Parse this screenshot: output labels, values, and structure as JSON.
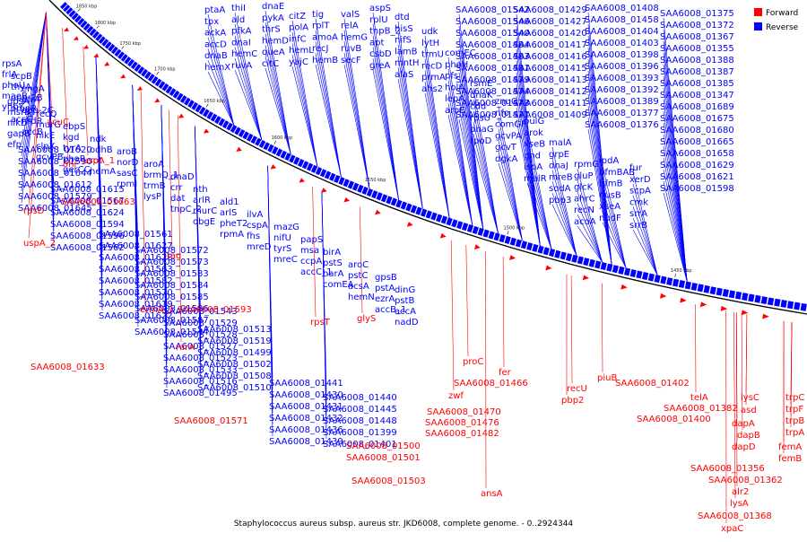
{
  "caption": "Staphylococcus aureus subsp. aureus str. JKD6008, complete genome. - 0..2924344",
  "legend": [
    {
      "name": "Forward",
      "color": "#ff0000"
    },
    {
      "name": "Reverse",
      "color": "#0000ff"
    }
  ],
  "colors": {
    "reverse": "#0000ff",
    "forward": "#ff0000",
    "backbone": "#000000"
  },
  "ticks": [
    "1450 kbp",
    "1500 kbp",
    "1550 kbp",
    "1600 kbp",
    "1650 kbp",
    "1700 kbp",
    "1750 kbp",
    "1800 kbp",
    "1850 kbp"
  ],
  "reverse_labels": [
    "ptaA",
    "tpx",
    "ackA",
    "accD",
    "dnaB",
    "hemX",
    "thiI",
    "ald",
    "pfkA",
    "dnaI",
    "hemC",
    "ruvA",
    "dnaE",
    "pykA",
    "thrS",
    "hemD",
    "queA",
    "citC",
    "fpg",
    "citZ",
    "polA",
    "infC",
    "hemL",
    "yajC",
    "coaE",
    "tig",
    "rplT",
    "amoA",
    "recJ",
    "hemB",
    "folC",
    "valS",
    "relA",
    "hemG",
    "ruvB",
    "secF",
    "aspS",
    "rplU",
    "tnpB_2",
    "apt",
    "csbD",
    "greA",
    "dtd",
    "hisS",
    "nifS",
    "lamB",
    "mntH",
    "alaS",
    "udk",
    "lytH",
    "trmU",
    "recD",
    "prmA",
    "ahs2",
    "comEC",
    "phoH",
    "pfs",
    "holA",
    "lepA",
    "aroE",
    "rsmE",
    "dnaK",
    "cdd",
    "rpsU",
    "dnaG",
    "rpoD",
    "znuC",
    "nfo",
    "comGF",
    "gcvPA",
    "gcvT",
    "dgkA",
    "pulG",
    "arok",
    "xseB",
    "gnd",
    "ispA",
    "malR",
    "malA",
    "grpE",
    "dnaJ",
    "mreB",
    "sodA",
    "pbp3",
    "rpmG",
    "gluP",
    "glcK",
    "ahrC",
    "recN",
    "acoA",
    "ipdA",
    "bfmBAB",
    "bfmB",
    "nusB",
    "xseA",
    "nudF",
    "fur",
    "xerD",
    "scpA",
    "cmk",
    "srrA",
    "srrB",
    "rpsA",
    "scpB",
    "engA",
    "gpsA",
    "recQ",
    "ebpS",
    "ndk",
    "aroB",
    "aroA",
    "dnaD",
    "nth",
    "ald1",
    "ilvA",
    "mazG",
    "papS",
    "birA",
    "aroC",
    "gpsB",
    "dinG",
    "frlA",
    "thyA",
    "dfrA",
    "msrB",
    "murG",
    "kgd",
    "odhB",
    "norD",
    "brmQ_1",
    "crr",
    "arlR",
    "arlS",
    "cspA",
    "nifU",
    "msa",
    "pstS",
    "pstC",
    "pstA",
    "pstB",
    "phoU",
    "opp-2B",
    "opp-2C",
    "nikD",
    "nikE",
    "tyrA",
    "rot",
    "sasC",
    "trmB",
    "dat",
    "murC",
    "pheT2",
    "fhs",
    "tyrS",
    "ccpA",
    "harA",
    "acsA",
    "ezrA",
    "accA",
    "maeB",
    "ompR",
    "nrdR",
    "gapB",
    "clpX",
    "phoR",
    "hemA",
    "rpmI",
    "lysP",
    "tnpC_2",
    "obgE",
    "rpmA",
    "mreD",
    "mreC",
    "accC_1",
    "comEA",
    "hemN",
    "accB_1",
    "nadD",
    "yhbY",
    "accC",
    "accB",
    "efp",
    "gcvPB",
    "gerCC"
  ],
  "saa_reverse": [
    "SAA6008_01542",
    "SAA6008_01546",
    "SAA6008_01540",
    "SAA6008_01484",
    "SAA6008_01483",
    "SAA6008_01481",
    "SAA6008_01479",
    "SAA6008_01474",
    "SAA6008_01473",
    "SAA6008_01471",
    "SAA6008_01429",
    "SAA6008_01427",
    "SAA6008_01420",
    "SAA6008_01417",
    "SAA6008_01416",
    "SAA6008_01415",
    "SAA6008_01413",
    "SAA6008_01412",
    "SAA6008_01411",
    "SAA6008_01409",
    "SAA6008_01408",
    "SAA6008_01458",
    "SAA6008_01404",
    "SAA6008_01403",
    "SAA6008_01398",
    "SAA6008_01396",
    "SAA6008_01393",
    "SAA6008_01392",
    "SAA6008_01389",
    "SAA6008_01377",
    "SAA6008_01376",
    "SAA6008_01375",
    "SAA6008_01372",
    "SAA6008_01367",
    "SAA6008_01355",
    "SAA6008_01388",
    "SAA6008_01387",
    "SAA6008_01385",
    "SAA6008_01347",
    "SAA6008_01689",
    "SAA6008_01675",
    "SAA6008_01680",
    "SAA6008_01665",
    "SAA6008_01658",
    "SAA6008_01629",
    "SAA6008_01621",
    "SAA6008_01598",
    "SAA6008_01620",
    "SAA6008_01590",
    "SAA6008_01644",
    "SAA6008_01612",
    "SAA6008_01579",
    "SAA6008_01645",
    "SAA6008_01615",
    "SAA6008_01567",
    "SAA6008_01624",
    "SAA6008_01594",
    "SAA6008_01596",
    "SAA6008_01562",
    "SAA6008_01561",
    "SAA6008_01627",
    "SAA6008_01628",
    "SAA6008_01563",
    "SAA6008_01582",
    "SAA6008_01570",
    "SAA6008_01619",
    "SAA6008_01622",
    "SAA6008_01572",
    "SAA6008_01573",
    "SAA6008_01583",
    "SAA6008_01584",
    "SAA6008_01585",
    "SAA6008_01586",
    "SAA6008_01587",
    "SAA6008_01544",
    "SAA6008_01543",
    "SAA6008_01529",
    "SAA6008_01528",
    "SAA6008_01527",
    "SAA6008_01523",
    "SAA6008_01533",
    "SAA6008_01516",
    "SAA6008_01495",
    "SAA6008_01513",
    "SAA6008_01519",
    "SAA6008_01499",
    "SAA6008_01502",
    "SAA6008_01508",
    "SAA6008_01510",
    "SAA6008_01441",
    "SAA6008_01430",
    "SAA6008_01431",
    "SAA6008_01432",
    "SAA6008_01436",
    "SAA6008_01439",
    "SAA6008_01440",
    "SAA6008_01445",
    "SAA6008_01448",
    "SAA6008_01399",
    "SAA6008_01401"
  ],
  "forward_labels": [
    "acuC",
    "ohr",
    "uspA_1",
    "rpsD",
    "uspA_2",
    "tag",
    "ermA_1",
    "rarA",
    "rpsT",
    "glyS",
    "proC",
    "zwf",
    "fer",
    "recU",
    "pbp2",
    "piuB",
    "ansA",
    "telA",
    "lysC",
    "asd",
    "dapA",
    "dapB",
    "dapD",
    "alr2",
    "lysA",
    "xpaC",
    "trpC",
    "trpF",
    "trpB",
    "trpA",
    "femA",
    "femB"
  ],
  "saa_forward": [
    "SAA6008_01663",
    "SAA6008_01593",
    "SAA6008_01633",
    "SAA6008_01571",
    "SAA6008_01500",
    "SAA6008_01501",
    "SAA6008_01503",
    "SAA6008_01466",
    "SAA6008_01470",
    "SAA6008_01476",
    "SAA6008_01482",
    "SAA6008_01402",
    "SAA6008_01382",
    "SAA6008_01400",
    "SAA6008_01356",
    "SAA6008_01362",
    "SAA6008_01368"
  ]
}
